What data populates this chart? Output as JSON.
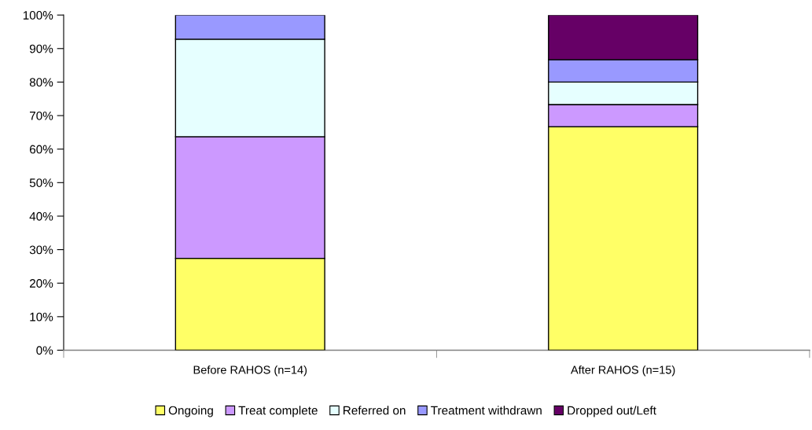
{
  "chart_data": {
    "type": "bar",
    "stacked": true,
    "categories": [
      "Before RAHOS (n=14)",
      "After RAHOS (n=15)"
    ],
    "series": [
      {
        "name": "Ongoing",
        "color": "#ffff66",
        "values": [
          27.4,
          66.7
        ]
      },
      {
        "name": "Treat complete",
        "color": "#cc99ff",
        "values": [
          36.3,
          6.6
        ]
      },
      {
        "name": "Referred on",
        "color": "#e6ffff",
        "values": [
          29.1,
          6.7
        ]
      },
      {
        "name": "Treatment withdrawn",
        "color": "#9999ff",
        "values": [
          7.2,
          6.7
        ]
      },
      {
        "name": "Dropped out/Left",
        "color": "#660066",
        "values": [
          null,
          13.3
        ]
      }
    ],
    "ylim": [
      0,
      100
    ],
    "yticks": [
      {
        "value": 0,
        "label": "0%"
      },
      {
        "value": 10,
        "label": "10%"
      },
      {
        "value": 20,
        "label": "20%"
      },
      {
        "value": 30,
        "label": "30%"
      },
      {
        "value": 40,
        "label": "40%"
      },
      {
        "value": 50,
        "label": "50%"
      },
      {
        "value": 60,
        "label": "60%"
      },
      {
        "value": 70,
        "label": "70%"
      },
      {
        "value": 80,
        "label": "80%"
      },
      {
        "value": 90,
        "label": "90%"
      },
      {
        "value": 100,
        "label": "100%"
      }
    ],
    "legend": "bottom",
    "grid": false
  }
}
